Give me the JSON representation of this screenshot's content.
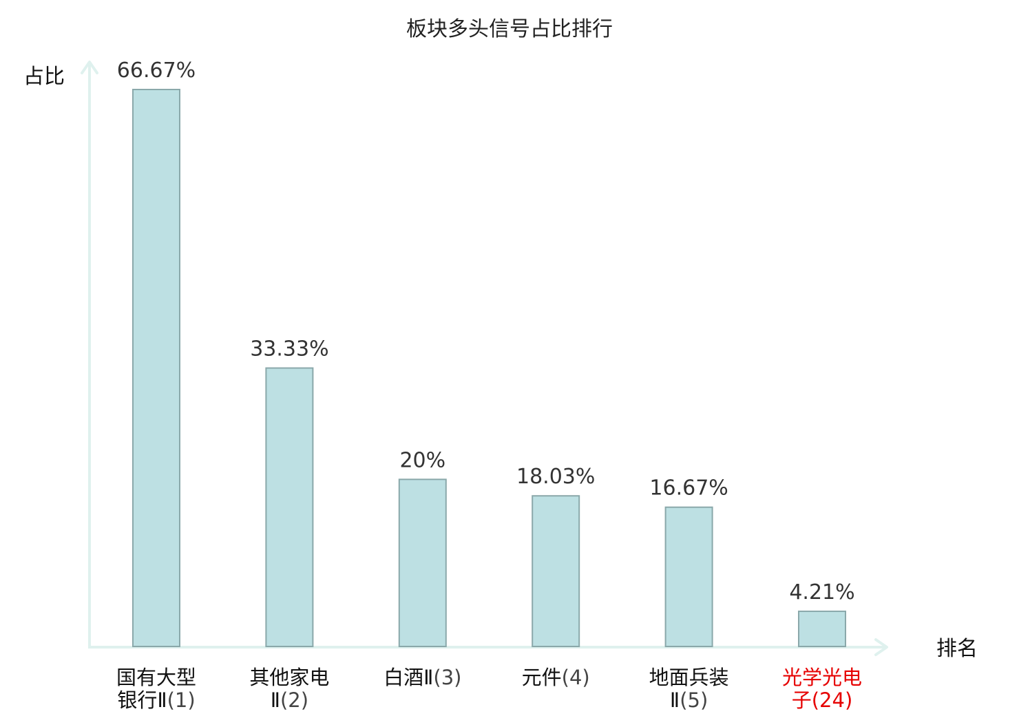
{
  "chart_data": {
    "type": "bar",
    "title": "板块多头信号占比排行",
    "xlabel": "排名",
    "ylabel": "占比",
    "categories": [
      {
        "lines": [
          "国有大型",
          "银行Ⅱ"
        ],
        "rank": "(1)",
        "highlight": false
      },
      {
        "lines": [
          "其他家电",
          "Ⅱ"
        ],
        "rank": "(2)",
        "highlight": false
      },
      {
        "lines": [
          "白酒Ⅱ"
        ],
        "rank": "(3)",
        "highlight": false
      },
      {
        "lines": [
          "元件"
        ],
        "rank": "(4)",
        "highlight": false
      },
      {
        "lines": [
          "地面兵装",
          "Ⅱ"
        ],
        "rank": "(5)",
        "highlight": false
      },
      {
        "lines": [
          "光学光电",
          "子"
        ],
        "rank": "(24)",
        "highlight": true
      }
    ],
    "values": [
      66.67,
      33.33,
      20,
      18.03,
      16.67,
      4.21
    ],
    "value_labels": [
      "66.67%",
      "33.33%",
      "20%",
      "18.03%",
      "16.67%",
      "4.21%"
    ],
    "ylim": [
      0,
      70
    ],
    "grid": false,
    "colors": {
      "bar_fill": "#bde0e3",
      "bar_stroke": "#8aa8aa",
      "axis": "#dff1ee",
      "highlight_text": "#e60000"
    }
  }
}
